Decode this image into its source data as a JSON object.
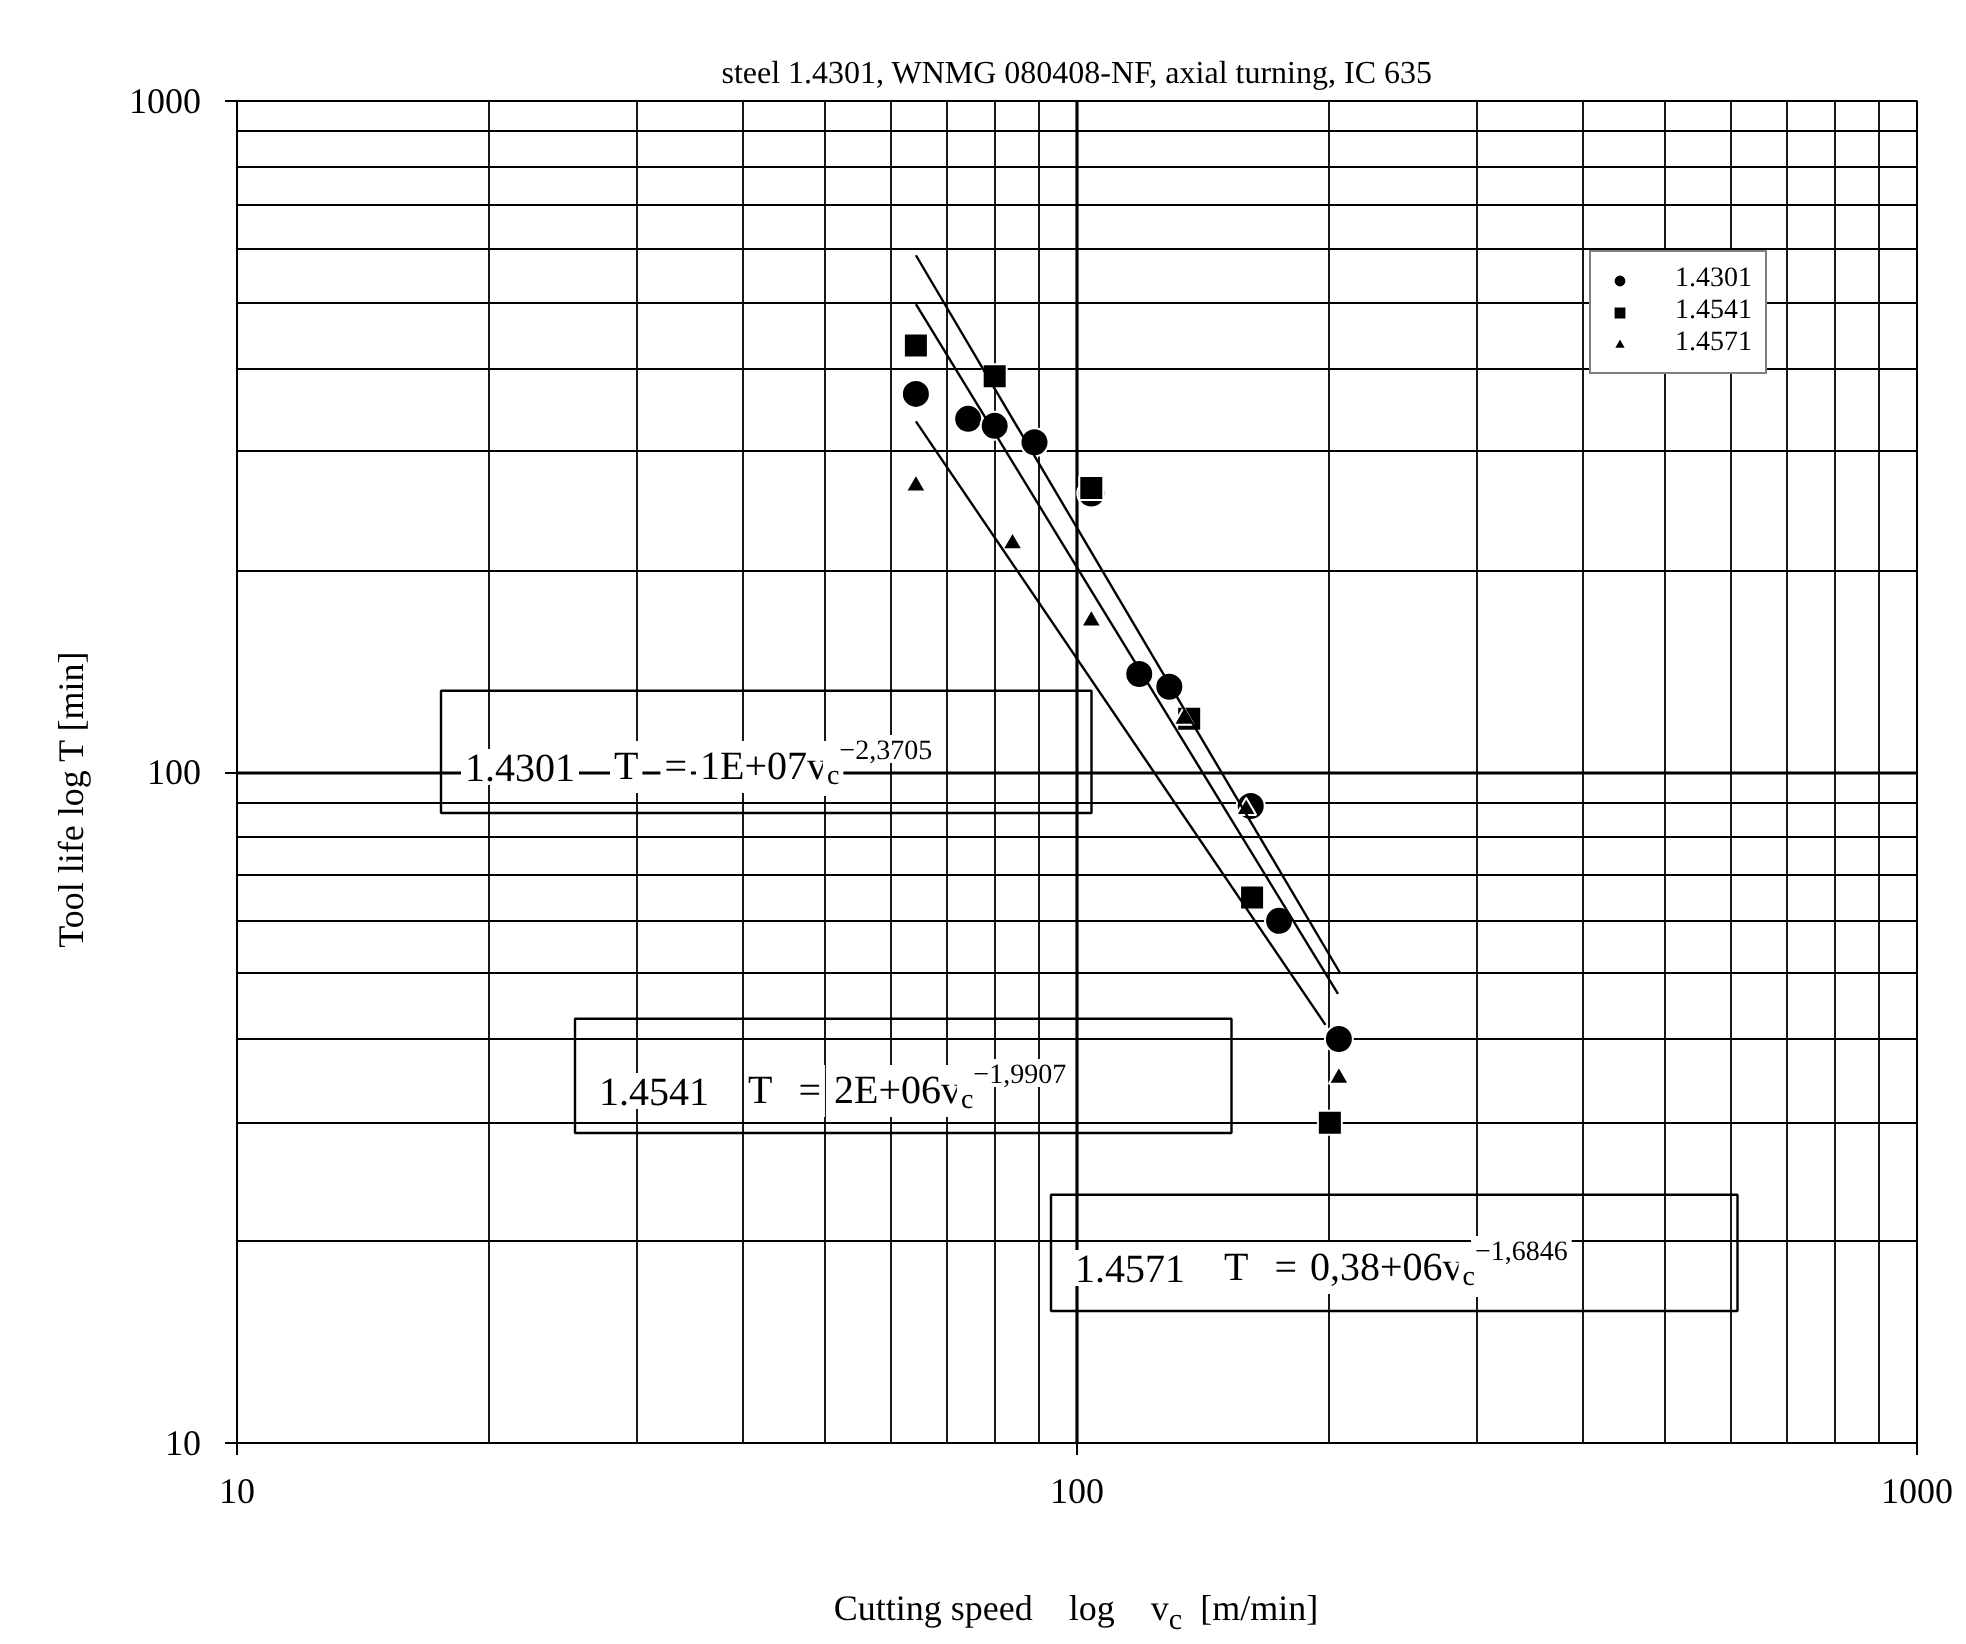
{
  "chart_data": {
    "type": "scatter",
    "title": "steel 1.4301, WNMG 080408-NF, axial turning, IC 635",
    "xlabel": "Cutting speed    log    v$_{c}$  [m/min]",
    "ylabel": "Tool life    log   T  [min]",
    "log": "xy",
    "grid": true,
    "legend": "top right",
    "xlim": [
      10,
      1000
    ],
    "ylim": [
      10,
      1000
    ],
    "xticks": [
      10,
      100,
      1000
    ],
    "yticks": [
      10,
      100,
      1000
    ],
    "series": [
      {
        "name": "1.4301",
        "marker": "circle",
        "color": "#000000",
        "x": [
          64.3,
          74.2,
          79.8,
          89.0,
          104,
          118.6,
          128.8,
          161,
          174,
          205
        ],
        "values": [
          366,
          336,
          328,
          310,
          260,
          140,
          134,
          89,
          60,
          40
        ]
      },
      {
        "name": "1.4541",
        "marker": "square",
        "color": "#000000",
        "x": [
          64.3,
          79.8,
          104,
          136,
          161.6,
          200
        ],
        "values": [
          432,
          389,
          265,
          120,
          65,
          30
        ]
      },
      {
        "name": "1.4571",
        "marker": "triangle",
        "color": "#000000",
        "x": [
          64.3,
          83.8,
          104,
          134,
          159,
          205
        ],
        "values": [
          267,
          219,
          168,
          120,
          88,
          35
        ]
      },
      {
        "type": "line",
        "color": "#000000",
        "x": [
          64.3,
          206
        ],
        "values": [
          589,
          50
        ]
      },
      {
        "type": "line",
        "color": "#000000",
        "x": [
          64.3,
          204.5
        ],
        "values": [
          498,
          46.7
        ]
      },
      {
        "type": "line",
        "color": "#000000",
        "x": [
          64.3,
          197.6
        ],
        "values": [
          333,
          42
        ]
      }
    ],
    "annotations": [
      "1.4301   T  = 1E+07v$_{c}$$^{−2,3705}$",
      "1.4541   T  = 2E+06v$_{c}$$^{−1,9907}$",
      "1.4571   T  = 0,38+06v$_{c}$$^{−1,6846}$"
    ]
  }
}
